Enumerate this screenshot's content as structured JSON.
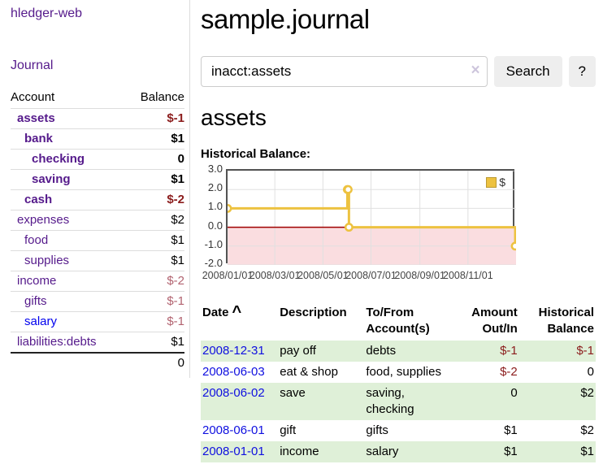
{
  "sidebar": {
    "brand": "hledger-web",
    "journal_link": "Journal",
    "accounts_table": {
      "headers": [
        "Account",
        "Balance"
      ],
      "rows": [
        {
          "name": "assets",
          "balance": "$-1"
        },
        {
          "name": "bank",
          "balance": "$1"
        },
        {
          "name": "checking",
          "balance": "0"
        },
        {
          "name": "saving",
          "balance": "$1"
        },
        {
          "name": "cash",
          "balance": "$-2"
        },
        {
          "name": "expenses",
          "balance": "$2"
        },
        {
          "name": "food",
          "balance": "$1"
        },
        {
          "name": "supplies",
          "balance": "$1"
        },
        {
          "name": "income",
          "balance": "$-2"
        },
        {
          "name": "gifts",
          "balance": "$-1"
        },
        {
          "name": "salary",
          "balance": "$-1"
        },
        {
          "name": "liabilities:debts",
          "balance": "$1"
        }
      ],
      "total": "0"
    }
  },
  "header": {
    "title": "sample.journal"
  },
  "search": {
    "value": "inacct:assets",
    "clear_icon": "×",
    "button_label": "Search",
    "help_label": "?"
  },
  "account_page": {
    "title": "assets",
    "chart_label": "Historical Balance:"
  },
  "chart_data": {
    "type": "line",
    "title": "Historical Balance of assets",
    "series": [
      {
        "name": "$",
        "color": "#edc240",
        "step": true,
        "points": [
          {
            "date": "2008/01/01",
            "value": 1
          },
          {
            "date": "2008/06/01",
            "value": 2
          },
          {
            "date": "2008/06/02",
            "value": 2
          },
          {
            "date": "2008/06/03",
            "value": 0
          },
          {
            "date": "2008/12/31",
            "value": -1
          }
        ]
      }
    ],
    "xlim": [
      "2008/01/01",
      "2009/01/01"
    ],
    "ylim": [
      -2,
      3
    ],
    "yticks": [
      "3.0",
      "2.0",
      "1.0",
      "0.0",
      "-1.0",
      "-2.0"
    ],
    "xticks": [
      "2008/01/01",
      "2008/03/01",
      "2008/05/01",
      "2008/07/01",
      "2008/09/01",
      "2008/11/01"
    ],
    "legend": {
      "label": "$",
      "position": "top-right"
    },
    "grid": true,
    "grid_color": "#e0e0e0",
    "negative_region_color": "#fadde0",
    "zero_line_color": "#a00000",
    "frame_color": "#545454"
  },
  "register": {
    "headers": {
      "date": "Date",
      "sort_icon": "^",
      "description": "Description",
      "accounts": "To/From Account(s)",
      "amount": "Amount Out/In",
      "balance": "Historical Balance"
    },
    "rows": [
      {
        "date": "2008-12-31",
        "description": "pay off",
        "accounts": "debts",
        "amount": "$-1",
        "balance": "$-1"
      },
      {
        "date": "2008-06-03",
        "description": "eat & shop",
        "accounts": "food, supplies",
        "amount": "$-2",
        "balance": "0"
      },
      {
        "date": "2008-06-02",
        "description": "save",
        "accounts": "saving, checking",
        "amount": "0",
        "balance": "$2"
      },
      {
        "date": "2008-06-01",
        "description": "gift",
        "accounts": "gifts",
        "amount": "$1",
        "balance": "$2"
      },
      {
        "date": "2008-01-01",
        "description": "income",
        "accounts": "salary",
        "amount": "$1",
        "balance": "$1"
      }
    ]
  },
  "colors": {
    "link_purple": "#551a8b",
    "link_blue": "#0000ee",
    "negative_strong": "#8b1c1c",
    "negative_dim": "#b26370",
    "row_stripe_green": "#dff0d8",
    "button_bg": "#eeeeee",
    "series_gold": "#edc240"
  }
}
